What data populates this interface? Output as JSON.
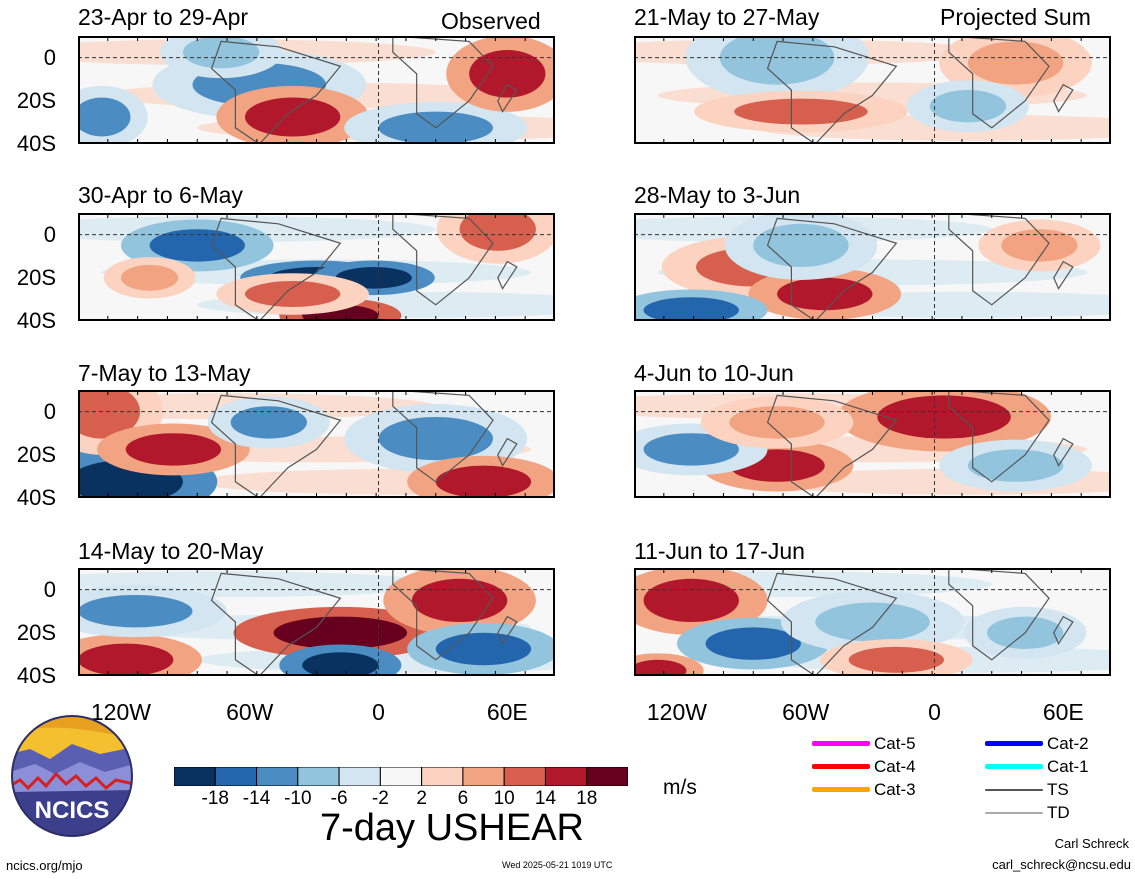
{
  "chart_data": {
    "type": "heatmap",
    "title": "7-day USHEAR",
    "units": "m/s",
    "labels": {
      "observed": "Observed",
      "projected": "Projected Sum"
    },
    "y_ticks": [
      "0",
      "20S",
      "40S"
    ],
    "x_ticks": [
      "120W",
      "60W",
      "0",
      "60E"
    ],
    "colorbar": {
      "ticks": [
        "-18",
        "-14",
        "-10",
        "-6",
        "-2",
        "2",
        "6",
        "10",
        "14",
        "18"
      ],
      "colors": [
        "#0a3261",
        "#2466ad",
        "#4b8dc2",
        "#92c4de",
        "#d2e5f0",
        "#f7f7f7",
        "#fbd3c0",
        "#f2a482",
        "#d6604d",
        "#b2182b",
        "#67001f"
      ]
    },
    "panels": [
      {
        "period": "23-Apr to 29-Apr",
        "column": "observed"
      },
      {
        "period": "30-Apr to 6-May",
        "column": "observed"
      },
      {
        "period": "7-May to 13-May",
        "column": "observed"
      },
      {
        "period": "14-May to 20-May",
        "column": "observed"
      },
      {
        "period": "21-May to 27-May",
        "column": "projected"
      },
      {
        "period": "28-May to 3-Jun",
        "column": "projected"
      },
      {
        "period": "4-Jun to 10-Jun",
        "column": "projected"
      },
      {
        "period": "11-Jun to 17-Jun",
        "column": "projected"
      }
    ]
  },
  "legend": [
    {
      "label": "Cat-5",
      "color": "#ff00ff"
    },
    {
      "label": "Cat-4",
      "color": "#ff0000"
    },
    {
      "label": "Cat-3",
      "color": "#ffa500"
    },
    {
      "label": "Cat-2",
      "color": "#0000ff"
    },
    {
      "label": "Cat-1",
      "color": "#00ffff"
    },
    {
      "label": "TS",
      "color": "#555555"
    },
    {
      "label": "TD",
      "color": "#aaaaaa"
    }
  ],
  "logo": {
    "text": "NCICS"
  },
  "footer": {
    "site": "ncics.org/mjo",
    "timestamp": "Wed 2025-05-21 1019 UTC",
    "author": "Carl Schreck",
    "email": "carl_schreck@ncsu.edu"
  }
}
